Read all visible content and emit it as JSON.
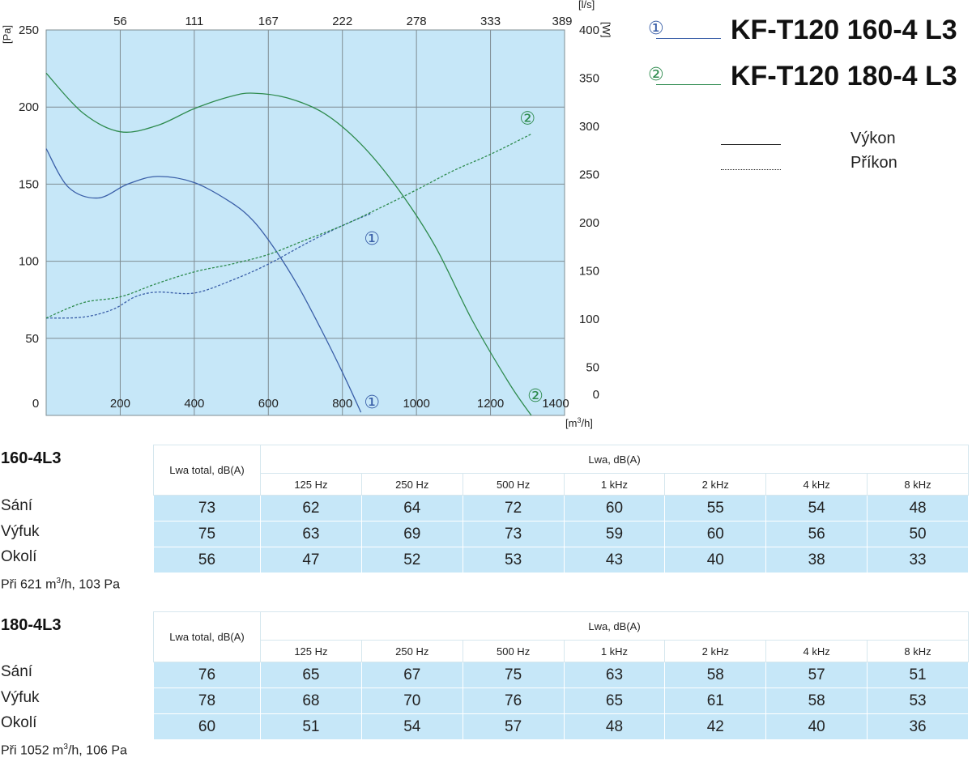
{
  "chart_data": {
    "type": "line",
    "x_unit": "[m³/h]",
    "x_ticks": [
      "0",
      "200",
      "400",
      "600",
      "800",
      "1000",
      "1200",
      "1400"
    ],
    "x_range": [
      0,
      1400
    ],
    "top_unit": "[l/s]",
    "top_ticks": [
      "56",
      "111",
      "167",
      "222",
      "278",
      "333",
      "389"
    ],
    "y_left_unit": "[Pa]",
    "y_left_ticks": [
      "50",
      "100",
      "150",
      "200",
      "250"
    ],
    "y_left_range": [
      0,
      250
    ],
    "y_right_unit": "[W]",
    "y_right_ticks": [
      "0",
      "50",
      "100",
      "150",
      "200",
      "250",
      "300",
      "350",
      "400"
    ],
    "y_right_range": [
      0,
      400
    ],
    "grid": true,
    "series": [
      {
        "name": "KF-T120 160-4 L3",
        "marker": "①",
        "kind": "Výkon",
        "axis": "left",
        "color": "#3a5fa8",
        "x": [
          0,
          60,
          140,
          220,
          300,
          400,
          500,
          560,
          620,
          680,
          740,
          800,
          850
        ],
        "y": [
          173,
          148,
          141,
          150,
          155,
          151,
          138,
          126,
          107,
          84,
          57,
          28,
          2
        ]
      },
      {
        "name": "KF-T120 160-4 L3",
        "marker": "①",
        "kind": "Příkon",
        "axis": "right",
        "color": "#3a5fa8",
        "x": [
          0,
          100,
          180,
          240,
          300,
          400,
          500,
          600,
          700,
          800,
          880
        ],
        "y": [
          101,
          102,
          110,
          123,
          128,
          127,
          140,
          157,
          178,
          197,
          210
        ]
      },
      {
        "name": "KF-T120 180-4 L3",
        "marker": "②",
        "kind": "Výkon",
        "axis": "left",
        "color": "#2e8b4e",
        "x": [
          0,
          100,
          200,
          300,
          400,
          500,
          560,
          650,
          750,
          850,
          950,
          1050,
          1150,
          1250,
          1310
        ],
        "y": [
          222,
          196,
          184,
          188,
          199,
          207,
          209,
          206,
          196,
          176,
          147,
          110,
          62,
          21,
          0
        ]
      },
      {
        "name": "KF-T120 180-4 L3",
        "marker": "②",
        "kind": "Příkon",
        "axis": "right",
        "color": "#2e8b4e",
        "x": [
          0,
          100,
          200,
          300,
          400,
          500,
          600,
          700,
          800,
          900,
          1000,
          1100,
          1200,
          1310
        ],
        "y": [
          101,
          117,
          123,
          137,
          149,
          157,
          167,
          182,
          197,
          215,
          234,
          254,
          271,
          292
        ]
      }
    ],
    "annotations": [
      {
        "text": "①",
        "x": 880,
        "y": 115,
        "axis": "left",
        "color": "#3a5fa8"
      },
      {
        "text": "①",
        "x": 880,
        "y": 9,
        "axis": "left",
        "color": "#3a5fa8"
      },
      {
        "text": "②",
        "x": 1300,
        "y": 193,
        "axis": "left",
        "color": "#2e8b4e"
      },
      {
        "text": "②",
        "x": 1330,
        "y": 13,
        "axis": "left",
        "color": "#2e8b4e"
      }
    ]
  },
  "legend": {
    "models": [
      {
        "marker": "①",
        "name": "KF-T120 160-4 L3",
        "color": "#3a5fa8"
      },
      {
        "marker": "②",
        "name": "KF-T120 180-4 L3",
        "color": "#2e8b4e"
      }
    ],
    "kinds": [
      {
        "label": "Výkon",
        "style": "solid"
      },
      {
        "label": "Příkon",
        "style": "dashed"
      }
    ]
  },
  "tables": [
    {
      "title": "160-4L3",
      "total_header": "Lwa total, dB(A)",
      "band_header": "Lwa, dB(A)",
      "bands": [
        "125 Hz",
        "250 Hz",
        "500 Hz",
        "1 kHz",
        "2 kHz",
        "4 kHz",
        "8 kHz"
      ],
      "rows": [
        {
          "label": "Sání",
          "values": [
            "73",
            "62",
            "64",
            "72",
            "60",
            "55",
            "54",
            "48"
          ]
        },
        {
          "label": "Výfuk",
          "values": [
            "75",
            "63",
            "69",
            "73",
            "59",
            "60",
            "56",
            "50"
          ]
        },
        {
          "label": "Okolí",
          "values": [
            "56",
            "47",
            "52",
            "53",
            "43",
            "40",
            "38",
            "33"
          ]
        }
      ],
      "note_prefix": "Při 621 m",
      "note_sup": "3",
      "note_suffix": "/h, 103 Pa"
    },
    {
      "title": "180-4L3",
      "total_header": "Lwa total, dB(A)",
      "band_header": "Lwa, dB(A)",
      "bands": [
        "125 Hz",
        "250 Hz",
        "500 Hz",
        "1 kHz",
        "2 kHz",
        "4 kHz",
        "8 kHz"
      ],
      "rows": [
        {
          "label": "Sání",
          "values": [
            "76",
            "65",
            "67",
            "75",
            "63",
            "58",
            "57",
            "51"
          ]
        },
        {
          "label": "Výfuk",
          "values": [
            "78",
            "68",
            "70",
            "76",
            "65",
            "61",
            "58",
            "53"
          ]
        },
        {
          "label": "Okolí",
          "values": [
            "60",
            "51",
            "54",
            "57",
            "48",
            "42",
            "40",
            "36"
          ]
        }
      ],
      "note_prefix": "Při 1052 m",
      "note_sup": "3",
      "note_suffix": "/h, 106 Pa"
    }
  ],
  "colors": {
    "plot_bg": "#c6e7f8",
    "grid": "#7f8c92",
    "series1": "#3a5fa8",
    "series2": "#2e8b4e"
  }
}
